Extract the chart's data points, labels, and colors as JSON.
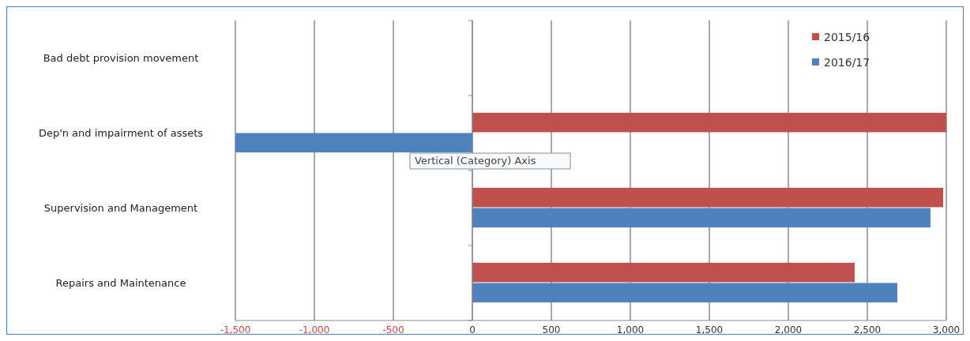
{
  "chart_data": {
    "type": "bar",
    "orientation": "horizontal",
    "categories": [
      "Bad debt provision movement",
      "Dep'n and impairment of assets",
      "Supervision and Management",
      "Repairs and Maintenance"
    ],
    "series": [
      {
        "name": "2015/16",
        "color": "#c0504d",
        "values": [
          null,
          3000,
          2980,
          2420
        ]
      },
      {
        "name": "2016/17",
        "color": "#4f81bd",
        "values": [
          null,
          -1500,
          2900,
          2690
        ]
      }
    ],
    "xlim": [
      -1500,
      3000
    ],
    "xticks": [
      {
        "value": -1500,
        "label": "-1,500"
      },
      {
        "value": -1000,
        "label": "-1,000"
      },
      {
        "value": -500,
        "label": "-500"
      },
      0,
      {
        "value": 500,
        "label": "500"
      },
      {
        "value": 1000,
        "label": "1,000"
      },
      {
        "value": 1500,
        "label": "1,500"
      },
      {
        "value": 2000,
        "label": "2,000"
      },
      {
        "value": 2500,
        "label": "2,500"
      },
      {
        "value": 3000,
        "label": "3,000"
      }
    ],
    "grid": "x",
    "legend": "top right",
    "annotations": [
      "Vertical (Category) Axis"
    ]
  }
}
